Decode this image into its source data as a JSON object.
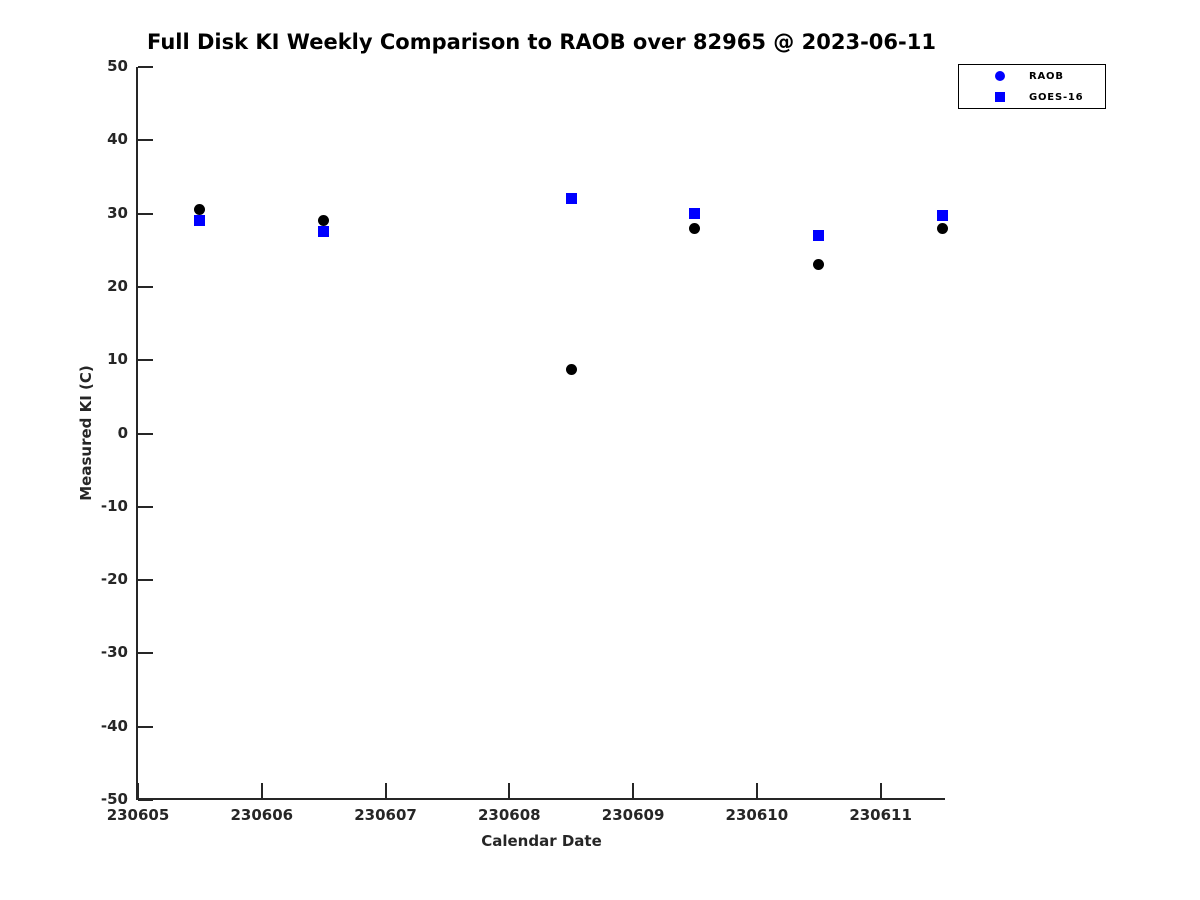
{
  "figure": {
    "title": "Full Disk KI Weekly Comparison to RAOB over 82965 @ 2023-06-11",
    "xlabel": "Calendar Date",
    "ylabel": "Measured KI (C)"
  },
  "legend": {
    "items": [
      {
        "label": "RAOB",
        "marker": "circle",
        "color": "#0000ff"
      },
      {
        "label": "GOES-16",
        "marker": "square",
        "color": "#0000ff"
      }
    ]
  },
  "chart_data": {
    "type": "scatter",
    "title": "Full Disk KI Weekly Comparison to RAOB over 82965 @ 2023-06-11",
    "xlabel": "Calendar Date",
    "ylabel": "Measured KI (C)",
    "xlim": [
      230605,
      230611.52
    ],
    "ylim": [
      -50,
      50
    ],
    "x_ticks": [
      230605,
      230606,
      230607,
      230608,
      230609,
      230610,
      230611
    ],
    "y_ticks": [
      50,
      40,
      30,
      20,
      10,
      0,
      -10,
      -20,
      -30,
      -40,
      -50
    ],
    "x": [
      230605.5,
      230606.5,
      230608.5,
      230609.5,
      230610.5,
      230611.5
    ],
    "series": [
      {
        "name": "RAOB",
        "marker": "circle",
        "color": "#000000",
        "values": [
          30.5,
          29.0,
          8.7,
          28.0,
          23.0,
          28.0
        ]
      },
      {
        "name": "GOES-16",
        "marker": "square",
        "color": "#0000ff",
        "values": [
          29.0,
          27.5,
          32.0,
          30.0,
          27.0,
          29.8
        ]
      }
    ],
    "grid": false,
    "legend_position": "top-right"
  }
}
